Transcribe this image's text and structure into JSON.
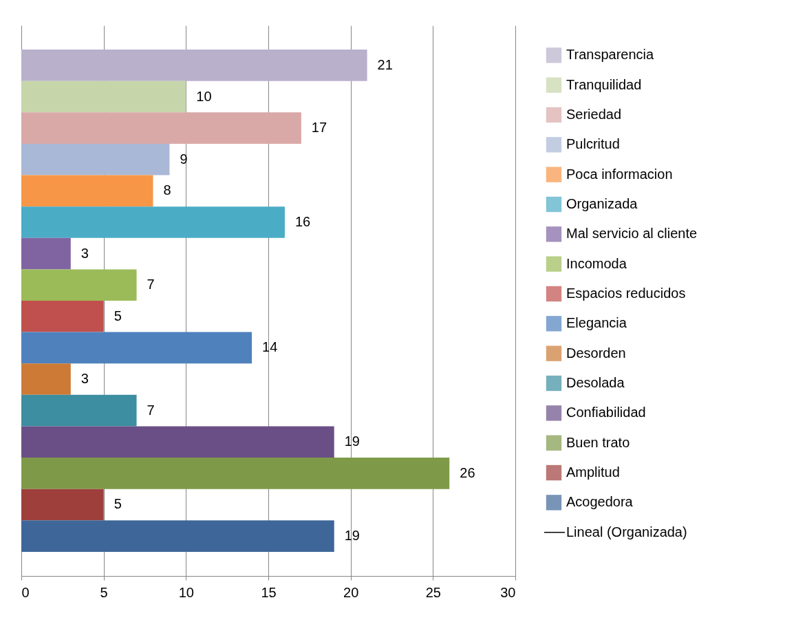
{
  "chart_data": {
    "type": "bar",
    "orientation": "horizontal",
    "categories": [
      null
    ],
    "xlim": [
      0,
      30
    ],
    "xticks": [
      0,
      5,
      10,
      15,
      20,
      25,
      30
    ],
    "grid": "x",
    "legend": "right",
    "data_labels": true,
    "tick_labels": "x",
    "series": [
      {
        "name": "Transparencia",
        "color": "#b9b0cc",
        "values": [
          21
        ]
      },
      {
        "name": "Tranquilidad",
        "color": "#c6d6aa",
        "values": [
          10
        ]
      },
      {
        "name": "Seriedad",
        "color": "#d9a9a8",
        "values": [
          17
        ]
      },
      {
        "name": "Pulcritud",
        "color": "#a9b8d6",
        "values": [
          9
        ]
      },
      {
        "name": "Poca informacion",
        "color": "#f79646",
        "values": [
          8
        ]
      },
      {
        "name": "Organizada",
        "color": "#4bacc6",
        "values": [
          16
        ]
      },
      {
        "name": "Mal servicio al cliente",
        "color": "#8064a2",
        "values": [
          3
        ]
      },
      {
        "name": "Incomoda",
        "color": "#9bbb59",
        "values": [
          7
        ]
      },
      {
        "name": "Espacios reducidos",
        "color": "#c0504d",
        "values": [
          5
        ]
      },
      {
        "name": "Elegancia",
        "color": "#4f81bd",
        "values": [
          14
        ]
      },
      {
        "name": "Desorden",
        "color": "#cc7a35",
        "values": [
          3
        ]
      },
      {
        "name": "Desolada",
        "color": "#3c8ea0",
        "values": [
          7
        ]
      },
      {
        "name": "Confiabilidad",
        "color": "#6a4f87",
        "values": [
          19
        ]
      },
      {
        "name": "Buen trato",
        "color": "#7e9a48",
        "values": [
          26
        ]
      },
      {
        "name": "Amplitud",
        "color": "#9e3f3c",
        "values": [
          5
        ]
      },
      {
        "name": "Acogedora",
        "color": "#3e6699",
        "values": [
          19
        ]
      },
      {
        "name": "Lineal (Organizada)",
        "type": "line",
        "color": "#000000",
        "values": [
          null
        ]
      }
    ]
  }
}
